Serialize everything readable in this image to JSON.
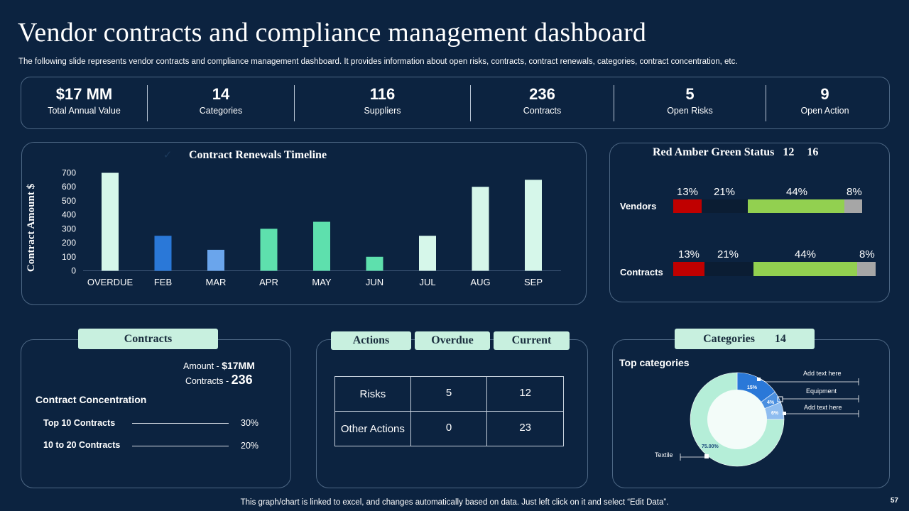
{
  "title": "Vendor contracts and compliance management dashboard",
  "subtitle": "The following slide represents vendor contracts and compliance management dashboard. It provides information about open risks, contracts, contract renewals, categories, contract concentration, etc.",
  "kpis": [
    {
      "value": "$17 MM",
      "label": "Total Annual Value"
    },
    {
      "value": "14",
      "label": "Categories"
    },
    {
      "value": "116",
      "label": "Suppliers"
    },
    {
      "value": "236",
      "label": "Contracts"
    },
    {
      "value": "5",
      "label": "Open Risks"
    },
    {
      "value": "9",
      "label": "Open Action"
    }
  ],
  "chart_data": [
    {
      "type": "bar",
      "title": "Contract Renewals Timeline",
      "title_mark": "✓",
      "ylabel": "Contract Amount $",
      "xlabel": "",
      "ylim": [
        0,
        700
      ],
      "yticks": [
        0,
        100,
        200,
        300,
        400,
        500,
        600,
        700
      ],
      "categories": [
        "OVERDUE",
        "FEB",
        "MAR",
        "APR",
        "MAY",
        "JUN",
        "JUL",
        "AUG",
        "SEP"
      ],
      "values": [
        700,
        250,
        150,
        300,
        350,
        100,
        250,
        600,
        650
      ],
      "bar_colors": [
        "#d6f7ea",
        "#2a78d8",
        "#6aa5ec",
        "#5ee0ad",
        "#5ee0ad",
        "#5ee0ad",
        "#d6f7ea",
        "#d6f7ea",
        "#d6f7ea"
      ]
    },
    {
      "type": "bar",
      "title": "Red Amber Green Status",
      "title_numbers": [
        "12",
        "16"
      ],
      "orientation": "horizontal-stacked",
      "categories": [
        "Vendors",
        "Contracts"
      ],
      "series": [
        {
          "name": "Red",
          "color": "#c00000",
          "values": [
            13,
            13
          ],
          "label": "13%"
        },
        {
          "name": "Amber",
          "color": "#0b1d33",
          "values": [
            21,
            21
          ],
          "label": "21%"
        },
        {
          "name": "Green",
          "color": "#92d050",
          "values": [
            44,
            44
          ],
          "label": "44%"
        },
        {
          "name": "Grey",
          "color": "#a6a6a6",
          "values": [
            8,
            8
          ],
          "label": "8%"
        }
      ]
    },
    {
      "type": "pie",
      "title": "Top categories",
      "style": "donut",
      "slices": [
        {
          "label": "Textile",
          "value": 75,
          "value_label": "75.00%",
          "color": "#b5eed8"
        },
        {
          "label": "Add text here",
          "value": 15,
          "value_label": "15%",
          "color": "#2a78d8"
        },
        {
          "label": "Equipment",
          "value": 4,
          "value_label": "4%",
          "color": "#4a8fe0"
        },
        {
          "label": "Add text here",
          "value": 6,
          "value_label": "6%",
          "color": "#8fbdf0"
        }
      ]
    }
  ],
  "contracts": {
    "tab": "Contracts",
    "amount_label": "Amount - ",
    "amount_value": "$17MM",
    "count_label": "Contracts - ",
    "count_value": "236",
    "concentration_title": "Contract Concentration",
    "rows": [
      {
        "label": "Top 10 Contracts",
        "value": "30%"
      },
      {
        "label": "10 to 20 Contracts",
        "value": "20%"
      }
    ]
  },
  "actions": {
    "tabs": [
      "Actions",
      "Overdue",
      "Current"
    ],
    "rows": [
      {
        "label": "Risks",
        "overdue": "5",
        "current": "12"
      },
      {
        "label": "Other Actions",
        "overdue": "0",
        "current": "23"
      }
    ]
  },
  "categories": {
    "tab": "Categories",
    "count": "14"
  },
  "footer": "This graph/chart is linked to excel,  and changes automatically based on data. Just left click on it and select “Edit Data”.",
  "page_number": "57"
}
